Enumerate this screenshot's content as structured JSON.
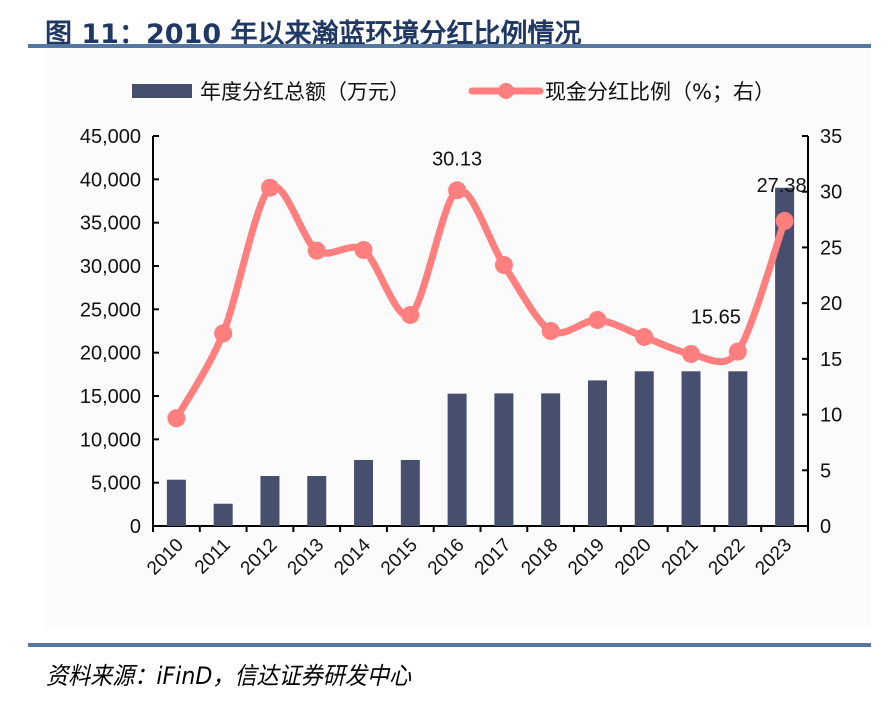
{
  "header": {
    "title": "图 11：2010 年以来瀚蓝环境分红比例情况"
  },
  "footer": {
    "source": "资料来源：iFinD，信达证券研发中心"
  },
  "colors": {
    "bar": "#46506e",
    "line": "#ff7f7f",
    "title": "#1f3864",
    "rule": "#5677a0"
  },
  "chart_data": {
    "type": "bar+line",
    "title": "2010 年以来瀚蓝环境分红比例情况",
    "categories": [
      "2010",
      "2011",
      "2012",
      "2013",
      "2014",
      "2015",
      "2016",
      "2017",
      "2018",
      "2019",
      "2020",
      "2021",
      "2022",
      "2023"
    ],
    "series": [
      {
        "name": "年度分红总额（万元）",
        "type": "bar",
        "axis": "left",
        "values": [
          5340,
          2570,
          5770,
          5770,
          7620,
          7620,
          15270,
          15300,
          15300,
          16800,
          17850,
          17850,
          17850,
          39030
        ]
      },
      {
        "name": "现金分红比例（%；右）",
        "type": "line",
        "axis": "right",
        "values": [
          9.67,
          17.29,
          30.36,
          24.71,
          24.77,
          18.94,
          30.13,
          23.42,
          17.5,
          18.49,
          16.96,
          15.44,
          15.65,
          27.38
        ]
      }
    ],
    "y_left": {
      "min": 0,
      "max": 45000,
      "step": 5000,
      "ticks": [
        "0",
        "5,000",
        "10,000",
        "15,000",
        "20,000",
        "25,000",
        "30,000",
        "35,000",
        "40,000",
        "45,000"
      ]
    },
    "y_right": {
      "min": 0,
      "max": 35,
      "step": 5,
      "ticks": [
        "0",
        "5",
        "10",
        "15",
        "20",
        "25",
        "30",
        "35"
      ]
    },
    "data_labels": [
      {
        "index": 6,
        "text": "30.13"
      },
      {
        "index": 12,
        "text": "15.65"
      },
      {
        "index": 13,
        "text": "27.38"
      }
    ],
    "legend": {
      "position": "top",
      "items": [
        "年度分红总额（万元）",
        "现金分红比例（%；右）"
      ]
    },
    "grid": false
  }
}
